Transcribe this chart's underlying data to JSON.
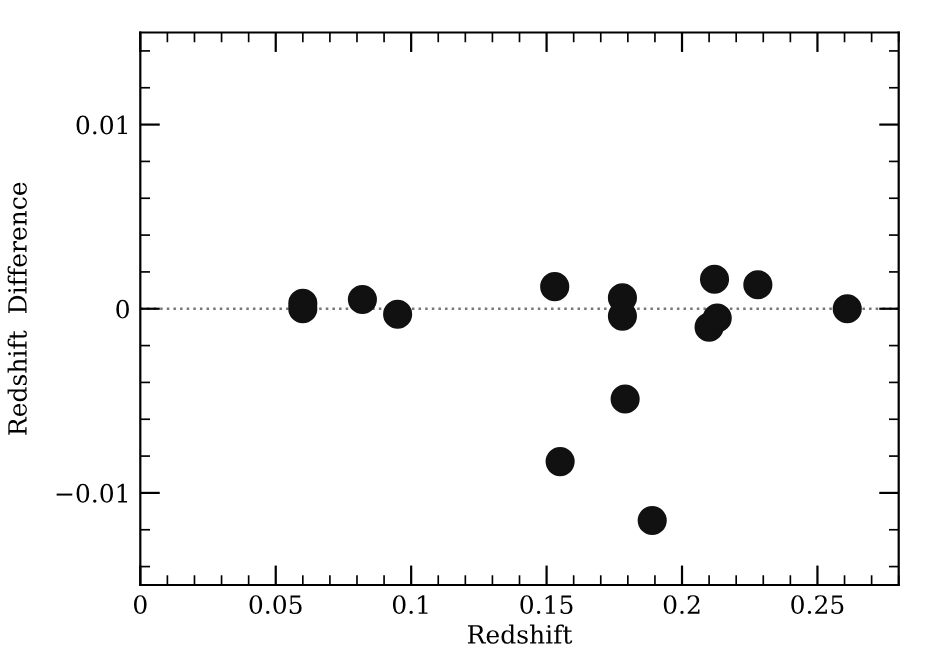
{
  "chart_data": {
    "type": "scatter",
    "xlabel": "Redshift",
    "ylabel": "Redshift  Difference",
    "x": [
      0.06,
      0.06,
      0.082,
      0.095,
      0.153,
      0.155,
      0.178,
      0.178,
      0.179,
      0.189,
      0.21,
      0.213,
      0.212,
      0.228,
      0.261
    ],
    "values": [
      0.0003,
      0.0,
      0.0005,
      -0.0003,
      0.0012,
      -0.0083,
      0.0006,
      -0.0004,
      -0.0049,
      -0.0115,
      -0.001,
      -0.0005,
      0.0016,
      0.0013,
      0.0
    ],
    "color": "#111111",
    "marker": "circle",
    "xlim": [
      0,
      0.28
    ],
    "ylim": [
      -0.015,
      0.015
    ],
    "xticks": [
      0,
      0.05,
      {
        "value": 0.1,
        "label": "0.1"
      },
      0.15,
      {
        "value": 0.2,
        "label": "0.2"
      },
      0.25
    ],
    "yticks": [
      {
        "value": -0.01,
        "label": "−0.01"
      },
      0,
      0.01
    ],
    "ref_lines": [
      {
        "axis": "y",
        "value": 0,
        "line_style": "dotted",
        "color": "#777777"
      }
    ],
    "grid": false
  }
}
